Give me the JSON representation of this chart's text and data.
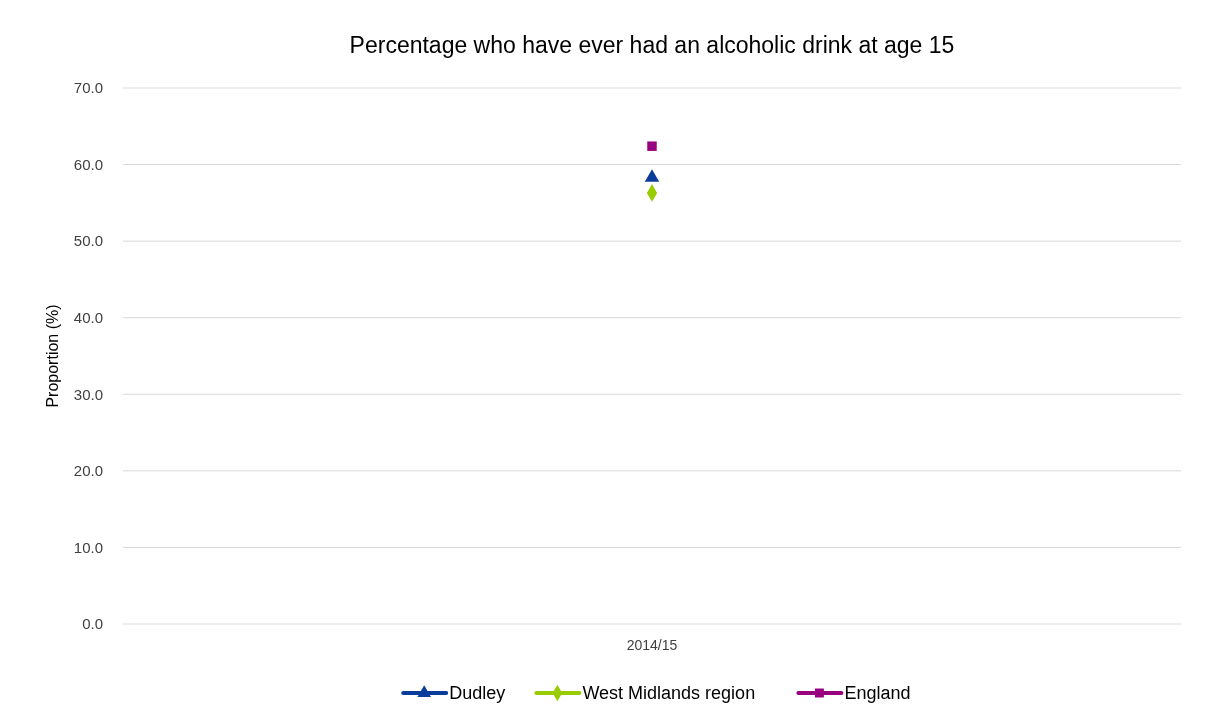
{
  "chart_data": {
    "type": "line",
    "title": "Percentage who have ever had an alcoholic drink at age 15",
    "ylabel": "Proportion (%)",
    "categories": [
      "2014/15"
    ],
    "series": [
      {
        "name": "Dudley",
        "color": "#0a3c9c",
        "values": [
          58.3
        ],
        "marker": "triangle"
      },
      {
        "name": "West Midlands region",
        "color": "#99cc00",
        "values": [
          56.3
        ],
        "marker": "diamond"
      },
      {
        "name": "England",
        "color": "#990080",
        "values": [
          62.4
        ],
        "marker": "square"
      }
    ],
    "ylim": [
      0,
      70
    ],
    "yticks": [
      {
        "value": 0,
        "label": "0.0"
      },
      {
        "value": 10,
        "label": "10.0"
      },
      {
        "value": 20,
        "label": "20.0"
      },
      {
        "value": 30,
        "label": "30.0"
      },
      {
        "value": 40,
        "label": "40.0"
      },
      {
        "value": 50,
        "label": "50.0"
      },
      {
        "value": 60,
        "label": "60.0"
      },
      {
        "value": 70,
        "label": "70.0"
      }
    ],
    "grid": "y",
    "legend": "bottom"
  }
}
